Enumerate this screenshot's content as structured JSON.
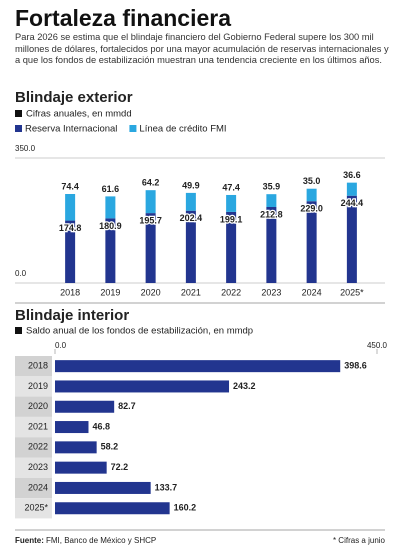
{
  "header": {
    "title": "Fortaleza financiera",
    "text": "Para 2026 se estima que el blindaje financiero del Gobierno Federal supere los 300 mil millones de dólares, fortalecidos por una mayor acumulación de reservas internacionales y a que los fondos de estabilización muestran una tendencia creciente en los últimos años."
  },
  "chart_data": [
    {
      "type": "stacked-bar",
      "title": "Blindaje exterior",
      "subtitle": "Cifras anuales, en mmdd",
      "categories": [
        "2018",
        "2019",
        "2020",
        "2021",
        "2022",
        "2023",
        "2024",
        "2025*"
      ],
      "series": [
        {
          "name": "Reserva Internacional",
          "color": "#22358f",
          "values": [
            174.8,
            180.9,
            195.7,
            202.4,
            199.1,
            212.8,
            229,
            244.4
          ],
          "value_labels": [
            "174.8",
            "180.9",
            "195.7",
            "202.4",
            "199.1",
            "212.8",
            "229.0",
            "244.4"
          ]
        },
        {
          "name": "Línea de crédito FMI",
          "color": "#2aa7e0",
          "values": [
            74.4,
            61.6,
            64.2,
            49.9,
            47.4,
            35.9,
            35,
            36.6
          ],
          "value_labels": [
            "74.4",
            "61.6",
            "64.2",
            "49.9",
            "47.4",
            "35.9",
            "35.0",
            "36.6"
          ]
        }
      ],
      "ylim": [
        0,
        350
      ],
      "yticks": [
        {
          "value": 0,
          "label": "0.0"
        },
        {
          "value": 350,
          "label": "350.0"
        }
      ]
    },
    {
      "type": "hbar",
      "title": "Blindaje interior",
      "subtitle": "Saldo anual de los fondos de estabilización, en mmdp",
      "categories": [
        "2018",
        "2019",
        "2020",
        "2021",
        "2022",
        "2023",
        "2024",
        "2025*"
      ],
      "values": [
        398.6,
        243.2,
        82.7,
        46.8,
        58.2,
        72.2,
        133.7,
        160.2
      ],
      "color": "#22358f",
      "xlim": [
        0,
        450
      ],
      "xticks": [
        {
          "value": 0,
          "label": "0.0"
        },
        {
          "value": 450,
          "label": "450.0"
        }
      ]
    }
  ],
  "footer": {
    "source_label": "Fuente:",
    "source": "FMI, Banco de México y SHCP",
    "note": "* Cifras a junio"
  }
}
